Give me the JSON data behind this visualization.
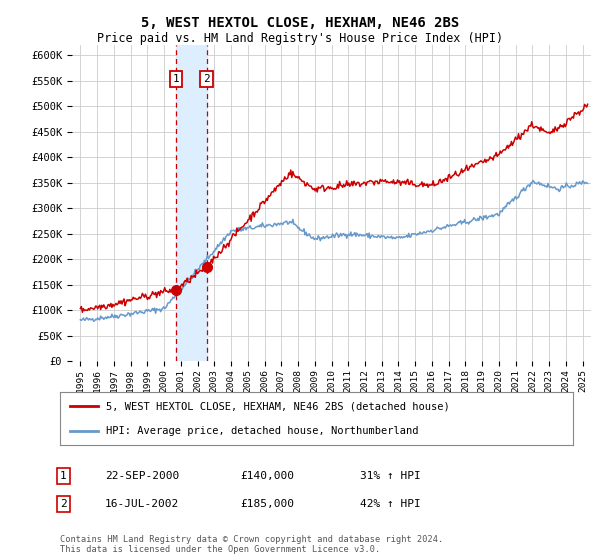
{
  "title1": "5, WEST HEXTOL CLOSE, HEXHAM, NE46 2BS",
  "title2": "Price paid vs. HM Land Registry's House Price Index (HPI)",
  "ylabel_ticks": [
    "£0",
    "£50K",
    "£100K",
    "£150K",
    "£200K",
    "£250K",
    "£300K",
    "£350K",
    "£400K",
    "£450K",
    "£500K",
    "£550K",
    "£600K"
  ],
  "ylim": [
    0,
    620000
  ],
  "xlim_start": 1994.5,
  "xlim_end": 2025.5,
  "transaction1_date": 2000.72,
  "transaction1_label": "1",
  "transaction1_price": 140000,
  "transaction2_date": 2002.54,
  "transaction2_label": "2",
  "transaction2_price": 185000,
  "legend_line1": "5, WEST HEXTOL CLOSE, HEXHAM, NE46 2BS (detached house)",
  "legend_line2": "HPI: Average price, detached house, Northumberland",
  "table_row1": [
    "1",
    "22-SEP-2000",
    "£140,000",
    "31% ↑ HPI"
  ],
  "table_row2": [
    "2",
    "16-JUL-2002",
    "£185,000",
    "42% ↑ HPI"
  ],
  "footnote": "Contains HM Land Registry data © Crown copyright and database right 2024.\nThis data is licensed under the Open Government Licence v3.0.",
  "color_red": "#cc0000",
  "color_blue": "#6699cc",
  "color_highlight": "#ddeeff",
  "grid_color": "#cccccc",
  "background_color": "#ffffff"
}
